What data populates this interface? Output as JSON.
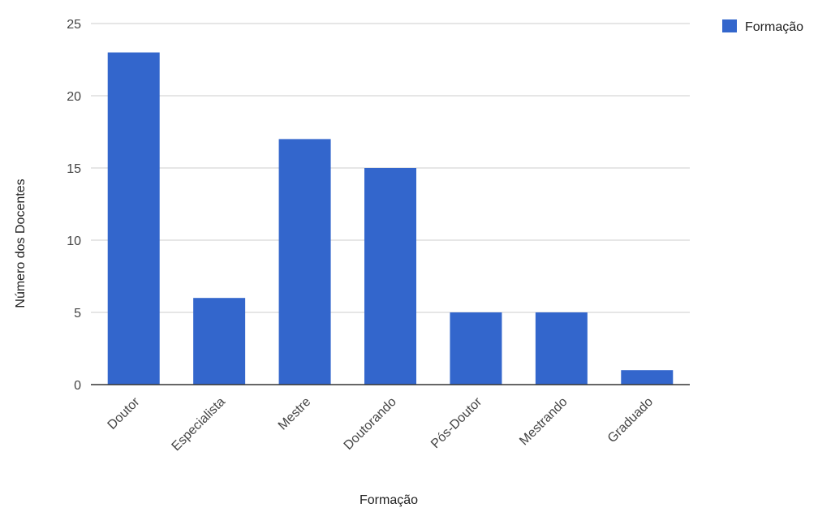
{
  "chart_data": {
    "type": "bar",
    "title": "",
    "xlabel": "Formação",
    "ylabel": "Número dos Docentes",
    "categories": [
      "Doutor",
      "Especialista",
      "Mestre",
      "Doutorando",
      "Pós-Doutor",
      "Mestrando",
      "Graduado"
    ],
    "series": [
      {
        "name": "Formação",
        "values": [
          23,
          6,
          17,
          15,
          5,
          5,
          1
        ],
        "color": "#3366cc"
      }
    ],
    "ylim": [
      0,
      25
    ],
    "yticks": [
      "0",
      "5",
      "10",
      "15",
      "20",
      "25"
    ],
    "grid": true,
    "legend_position": "top-right"
  }
}
